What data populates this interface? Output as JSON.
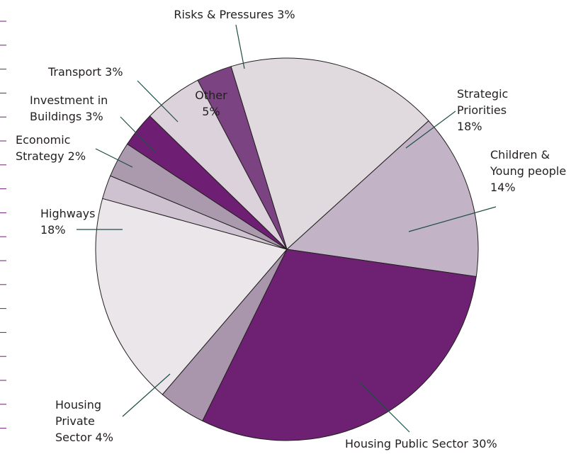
{
  "chart_data": {
    "type": "pie",
    "slices": [
      {
        "label": "Strategic Priorities 18%",
        "lines": [
          "Strategic",
          "Priorities",
          "18%"
        ],
        "value": 18,
        "color": "#e0dade"
      },
      {
        "label": "Children & Young people 14%",
        "lines": [
          "Children &",
          "Young people",
          "14%"
        ],
        "value": 14,
        "color": "#c3b3c6"
      },
      {
        "label": "Housing Public Sector 30%",
        "lines": [
          "Housing Public Sector 30%"
        ],
        "value": 30,
        "color": "#6e2073"
      },
      {
        "label": "Housing Private Sector 4%",
        "lines": [
          "Housing",
          "Private",
          "Sector 4%"
        ],
        "value": 4,
        "color": "#a996ad"
      },
      {
        "label": "Highways 18%",
        "lines": [
          "Highways",
          "18%"
        ],
        "value": 18,
        "color": "#ebe6ea"
      },
      {
        "label": "Economic Strategy 2%",
        "lines": [
          "Economic",
          "Strategy 2%"
        ],
        "value": 2,
        "color": "#cec2d0"
      },
      {
        "label": "Investment in Buildings 3%",
        "lines": [
          "Investment in",
          "Buildings 3%"
        ],
        "value": 3,
        "color": "#ab9aad"
      },
      {
        "label": "Transport 3%",
        "lines": [
          "Transport 3%"
        ],
        "value": 3,
        "color": "#6f1f73"
      },
      {
        "label": "Other 5%",
        "lines": [
          "Other",
          "5%"
        ],
        "value": 5,
        "color": "#dcd2db"
      },
      {
        "label": "Risks & Pressures 3%",
        "lines": [
          "Risks & Pressures 3%"
        ],
        "value": 3,
        "color": "#7b4381"
      }
    ]
  }
}
